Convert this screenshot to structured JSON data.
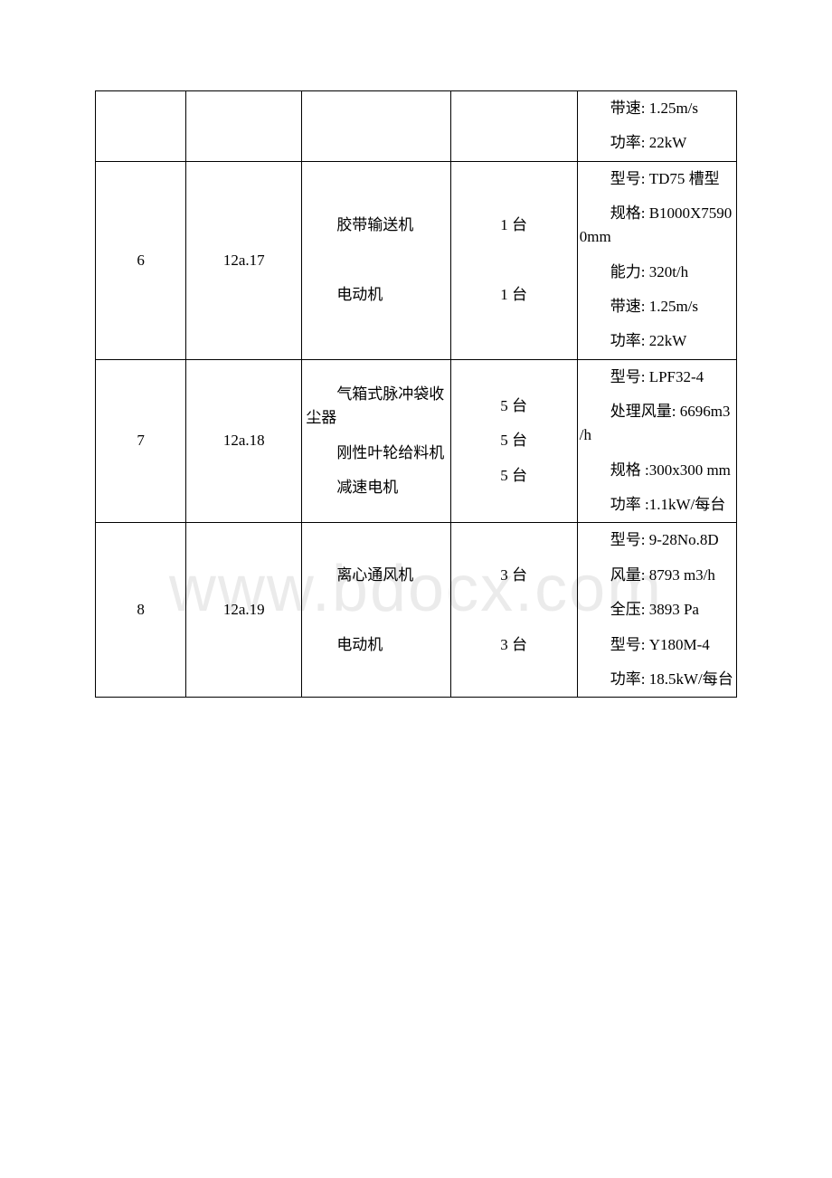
{
  "watermark": "www.bdocx.com",
  "rows": [
    {
      "c1": null,
      "c2": null,
      "c3": null,
      "c4": null,
      "c5": [
        "带速: 1.25m/s",
        "功率: 22kW"
      ]
    },
    {
      "c1": "6",
      "c2": "12a.17",
      "c3": [
        "胶带输送机",
        "",
        "电动机"
      ],
      "c4": [
        "1 台",
        "",
        "1 台"
      ],
      "c5": [
        "型号: TD75 槽型",
        "规格: B1000X7590 0mm",
        "能力: 320t/h",
        "带速: 1.25m/s",
        "功率: 22kW"
      ]
    },
    {
      "c1": "7",
      "c2": "12a.18",
      "c3": [
        "气箱式脉冲袋收尘器",
        "刚性叶轮给料机",
        "减速电机"
      ],
      "c4": [
        "5 台",
        "5 台",
        "5 台"
      ],
      "c5": [
        "型号: LPF32-4",
        "处理风量: 6696m3 /h",
        "规格 :300x300 mm",
        "功率 :1.1kW/每台"
      ]
    },
    {
      "c1": "8",
      "c2": "12a.19",
      "c3": [
        "离心通风机",
        "",
        "电动机"
      ],
      "c4": [
        "3 台",
        "",
        "3 台"
      ],
      "c5": [
        "型号: 9-28No.8D",
        "风量: 8793 m3/h",
        "全压: 3893 Pa",
        "型号: Y180M-4",
        "功率: 18.5kW/每台"
      ]
    }
  ]
}
